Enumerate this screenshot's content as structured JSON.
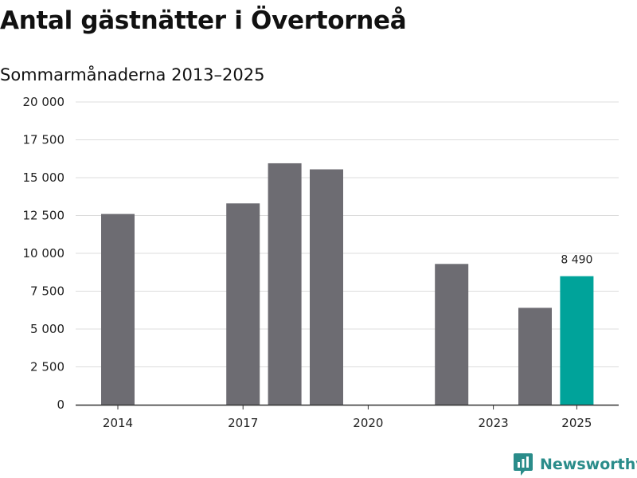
{
  "title": "Antal gästnätter i Övertorneå",
  "subtitle": "Sommarmånaderna 2013–2025",
  "brand": {
    "name": "Newsworthy"
  },
  "colors": {
    "bar": "#6d6c72",
    "highlight": "#00a39a",
    "grid": "#dcdcdc",
    "axis": "#333333",
    "brand": "#2a8c8a"
  },
  "chart_data": {
    "type": "bar",
    "title": "Antal gästnätter i Övertorneå",
    "subtitle": "Sommarmånaderna 2013–2025",
    "x": [
      2013,
      2014,
      2015,
      2016,
      2017,
      2018,
      2019,
      2020,
      2021,
      2022,
      2023,
      2024,
      2025
    ],
    "values": [
      null,
      12600,
      null,
      null,
      13300,
      15950,
      15550,
      null,
      null,
      9300,
      null,
      6400,
      8490
    ],
    "highlight": 2025,
    "data_labels": [
      {
        "x": 2025,
        "text": "8 490"
      }
    ],
    "xticks": [
      "2014",
      "2017",
      "2020",
      "2023",
      "2025"
    ],
    "xtick_values": [
      2014,
      2017,
      2020,
      2023,
      2025
    ],
    "yticks": [
      "0",
      "2 500",
      "5 000",
      "7 500",
      "10 000",
      "12 500",
      "15 000",
      "17 500",
      "20 000"
    ],
    "ytick_values": [
      0,
      2500,
      5000,
      7500,
      10000,
      12500,
      15000,
      17500,
      20000
    ],
    "ylim": [
      0,
      20000
    ],
    "grid": true,
    "xlabel": "",
    "ylabel": ""
  }
}
